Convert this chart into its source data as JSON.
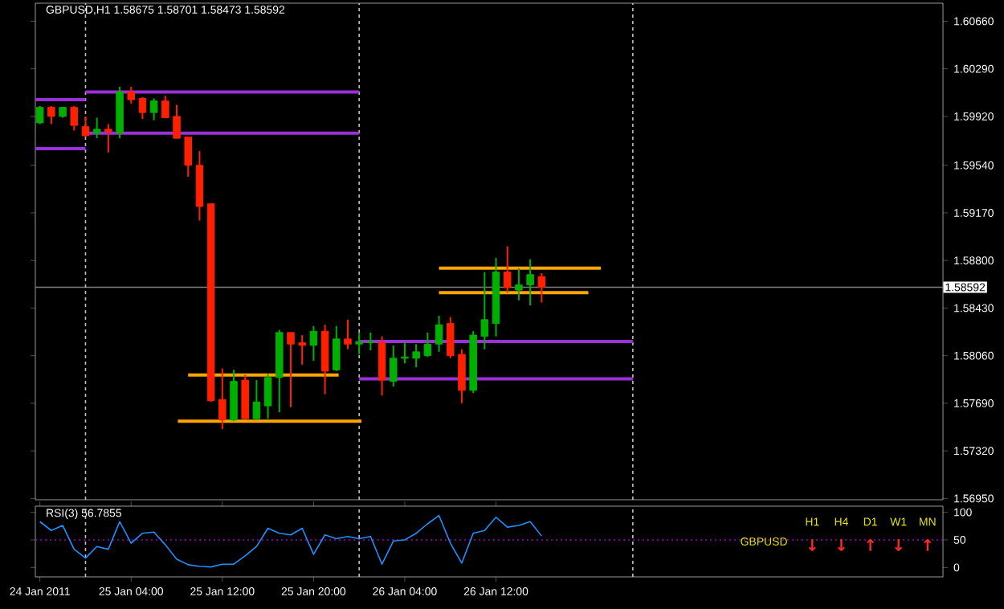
{
  "chart_data": [
    {
      "type": "candlestick",
      "title": "GBPUSD,H1  1.58675 1.58701 1.58473 1.58592",
      "x": [
        "2011-01-24T20:00",
        "2011-01-24T21:00",
        "2011-01-24T22:00",
        "2011-01-24T23:00",
        "2011-01-25T00:00",
        "2011-01-25T01:00",
        "2011-01-25T02:00",
        "2011-01-25T03:00",
        "2011-01-25T04:00",
        "2011-01-25T05:00",
        "2011-01-25T06:00",
        "2011-01-25T07:00",
        "2011-01-25T08:00",
        "2011-01-25T09:00",
        "2011-01-25T10:00",
        "2011-01-25T11:00",
        "2011-01-25T12:00",
        "2011-01-25T13:00",
        "2011-01-25T14:00",
        "2011-01-25T15:00",
        "2011-01-25T16:00",
        "2011-01-25T17:00",
        "2011-01-25T18:00",
        "2011-01-25T19:00",
        "2011-01-25T20:00",
        "2011-01-25T21:00",
        "2011-01-25T22:00",
        "2011-01-25T23:00",
        "2011-01-26T00:00",
        "2011-01-26T01:00",
        "2011-01-26T02:00",
        "2011-01-26T03:00",
        "2011-01-26T04:00",
        "2011-01-26T05:00",
        "2011-01-26T06:00",
        "2011-01-26T07:00",
        "2011-01-26T08:00",
        "2011-01-26T09:00",
        "2011-01-26T10:00",
        "2011-01-26T11:00",
        "2011-01-26T12:00",
        "2011-01-26T13:00",
        "2011-01-26T14:00",
        "2011-01-26T15:00",
        "2011-01-26T16:00"
      ],
      "ohlc": [
        [
          1.5987,
          1.6,
          1.5986,
          1.5999
        ],
        [
          1.5999,
          1.6,
          1.5986,
          1.5992
        ],
        [
          1.5992,
          1.5999,
          1.5991,
          1.5999
        ],
        [
          1.5999,
          1.6,
          1.5981,
          1.5985
        ],
        [
          1.5984,
          1.5992,
          1.5976,
          1.5977
        ],
        [
          1.5979,
          1.5991,
          1.5975,
          1.5982
        ],
        [
          1.5982,
          1.5986,
          1.5964,
          1.598
        ],
        [
          1.5979,
          1.6015,
          1.5975,
          1.6011
        ],
        [
          1.6011,
          1.6015,
          1.6002,
          1.6005
        ],
        [
          1.6006,
          1.6007,
          1.599,
          1.5995
        ],
        [
          1.5995,
          1.6006,
          1.5989,
          1.6004
        ],
        [
          1.6004,
          1.6008,
          1.5991,
          1.5991
        ],
        [
          1.5992,
          1.6001,
          1.5975,
          1.5975
        ],
        [
          1.5976,
          1.5976,
          1.5945,
          1.5954
        ],
        [
          1.5954,
          1.5965,
          1.5911,
          1.5922
        ],
        [
          1.5924,
          1.5924,
          1.577,
          1.5771
        ],
        [
          1.5772,
          1.5796,
          1.5749,
          1.5756
        ],
        [
          1.5756,
          1.5795,
          1.5755,
          1.5786
        ],
        [
          1.5787,
          1.5791,
          1.5757,
          1.5757
        ],
        [
          1.5757,
          1.5787,
          1.5756,
          1.577
        ],
        [
          1.5767,
          1.5792,
          1.5757,
          1.5789
        ],
        [
          1.5789,
          1.5826,
          1.5762,
          1.5824
        ],
        [
          1.5824,
          1.5824,
          1.5766,
          1.5815
        ],
        [
          1.5816,
          1.5822,
          1.5799,
          1.5814
        ],
        [
          1.5814,
          1.5829,
          1.5802,
          1.5825
        ],
        [
          1.5825,
          1.583,
          1.5776,
          1.5794
        ],
        [
          1.5795,
          1.5829,
          1.5794,
          1.5819
        ],
        [
          1.5819,
          1.5834,
          1.5811,
          1.5815
        ],
        [
          1.5815,
          1.5824,
          1.5807,
          1.5817
        ],
        [
          1.5816,
          1.5824,
          1.581,
          1.5817
        ],
        [
          1.5816,
          1.5821,
          1.5775,
          1.5787
        ],
        [
          1.5786,
          1.5814,
          1.5782,
          1.5804
        ],
        [
          1.5804,
          1.5817,
          1.58,
          1.5805
        ],
        [
          1.5804,
          1.5815,
          1.5797,
          1.5809
        ],
        [
          1.5806,
          1.5824,
          1.5805,
          1.5815
        ],
        [
          1.5815,
          1.5837,
          1.5809,
          1.583
        ],
        [
          1.5831,
          1.5836,
          1.5804,
          1.5806
        ],
        [
          1.5807,
          1.5811,
          1.5769,
          1.5779
        ],
        [
          1.5779,
          1.5825,
          1.5777,
          1.5822
        ],
        [
          1.5821,
          1.5871,
          1.5811,
          1.5834
        ],
        [
          1.5831,
          1.5882,
          1.5821,
          1.5871
        ],
        [
          1.5871,
          1.5891,
          1.5855,
          1.5859
        ],
        [
          1.5857,
          1.5874,
          1.5849,
          1.5861
        ],
        [
          1.5861,
          1.5881,
          1.5845,
          1.5869
        ],
        [
          1.58675,
          1.58701,
          1.58473,
          1.58592
        ]
      ],
      "series": [
        {
          "type": "line",
          "x": [
            "2011-01-24T19:36",
            "2011-01-25T00:00"
          ],
          "values": [
            1.6005,
            1.6005
          ],
          "color": "#9b30d9"
        },
        {
          "type": "line",
          "x": [
            "2011-01-24T19:36",
            "2011-01-25T00:00"
          ],
          "values": [
            1.5967,
            1.5967
          ],
          "color": "#9b30d9"
        },
        {
          "type": "line",
          "x": [
            "2011-01-25T00:00",
            "2011-01-26T00:00"
          ],
          "values": [
            1.6011,
            1.6011
          ],
          "color": "#9b30d9"
        },
        {
          "type": "line",
          "x": [
            "2011-01-25T00:00",
            "2011-01-26T00:00"
          ],
          "values": [
            1.5979,
            1.5979
          ],
          "color": "#9b30d9"
        },
        {
          "type": "line",
          "x": [
            "2011-01-26T00:00",
            "2011-01-27T00:00"
          ],
          "values": [
            1.5817,
            1.5817
          ],
          "color": "#9b30d9"
        },
        {
          "type": "line",
          "x": [
            "2011-01-26T00:00",
            "2011-01-27T00:00"
          ],
          "values": [
            1.5788,
            1.5788
          ],
          "color": "#9b30d9"
        },
        {
          "type": "line",
          "x": [
            "2011-01-25T09:00",
            "2011-01-25T22:12"
          ],
          "values": [
            1.5791,
            1.5791
          ],
          "color": "#ffa500"
        },
        {
          "type": "line",
          "x": [
            "2011-01-25T08:06",
            "2011-01-26T00:12"
          ],
          "values": [
            1.5755,
            1.5755
          ],
          "color": "#ffa500"
        },
        {
          "type": "line",
          "x": [
            "2011-01-26T07:00",
            "2011-01-26T21:12"
          ],
          "values": [
            1.5874,
            1.5874
          ],
          "color": "#ffa500"
        },
        {
          "type": "line",
          "x": [
            "2011-01-26T07:00",
            "2011-01-26T20:06"
          ],
          "values": [
            1.5855,
            1.5855
          ],
          "color": "#ffa500"
        }
      ],
      "xlim": [
        "2011-01-24T19:36",
        "2011-01-28T03:12"
      ],
      "ylim": [
        1.5694,
        1.608
      ],
      "yticks": [
        {
          "value": 1.5695,
          "label": "1.56950"
        },
        {
          "value": 1.5732,
          "label": "1.57320"
        },
        {
          "value": 1.5769,
          "label": "1.57690"
        },
        {
          "value": 1.5806,
          "label": "1.58060"
        },
        {
          "value": 1.5843,
          "label": "1.58430"
        },
        {
          "value": 1.588,
          "label": "1.58800"
        },
        {
          "value": 1.5917,
          "label": "1.59170"
        },
        {
          "value": 1.5954,
          "label": "1.59540"
        },
        {
          "value": 1.5992,
          "label": "1.59920"
        },
        {
          "value": 1.6029,
          "label": "1.60290"
        },
        {
          "value": 1.6066,
          "label": "1.60660"
        }
      ],
      "tick_labels": "y",
      "ref_lines": [
        {
          "axis": "y",
          "value": 1.58592,
          "label": "1.58592",
          "color": "#808080",
          "line_style": "solid"
        },
        {
          "axis": "x",
          "value": "2011-01-25T00:00",
          "color": "#c0c0c0",
          "line_style": "dashed"
        },
        {
          "axis": "x",
          "value": "2011-01-26T00:00",
          "color": "#c0c0c0",
          "line_style": "dashed"
        },
        {
          "axis": "x",
          "value": "2011-01-27T00:00",
          "color": "#c0c0c0",
          "line_style": "dashed"
        }
      ]
    },
    {
      "type": "line",
      "title": "RSI(3) 56.7855",
      "x": [
        "2011-01-24T20:00",
        "2011-01-24T21:00",
        "2011-01-24T22:00",
        "2011-01-24T23:00",
        "2011-01-25T00:00",
        "2011-01-25T01:00",
        "2011-01-25T02:00",
        "2011-01-25T03:00",
        "2011-01-25T04:00",
        "2011-01-25T05:00",
        "2011-01-25T06:00",
        "2011-01-25T07:00",
        "2011-01-25T08:00",
        "2011-01-25T09:00",
        "2011-01-25T10:00",
        "2011-01-25T11:00",
        "2011-01-25T12:00",
        "2011-01-25T13:00",
        "2011-01-25T14:00",
        "2011-01-25T15:00",
        "2011-01-25T16:00",
        "2011-01-25T17:00",
        "2011-01-25T18:00",
        "2011-01-25T19:00",
        "2011-01-25T20:00",
        "2011-01-25T21:00",
        "2011-01-25T22:00",
        "2011-01-25T23:00",
        "2011-01-26T00:00",
        "2011-01-26T01:00",
        "2011-01-26T02:00",
        "2011-01-26T03:00",
        "2011-01-26T04:00",
        "2011-01-26T05:00",
        "2011-01-26T06:00",
        "2011-01-26T07:00",
        "2011-01-26T08:00",
        "2011-01-26T09:00",
        "2011-01-26T10:00",
        "2011-01-26T11:00",
        "2011-01-26T12:00",
        "2011-01-26T13:00",
        "2011-01-26T14:00",
        "2011-01-26T15:00",
        "2011-01-26T16:00"
      ],
      "series": [
        {
          "color": "#1e90ff",
          "values": [
            83,
            67,
            76,
            33,
            17,
            38,
            33,
            83,
            44,
            62,
            64,
            41,
            15,
            5,
            2,
            1,
            6,
            6,
            21,
            38,
            71,
            62,
            59,
            71,
            24,
            59,
            52,
            56,
            52,
            56,
            6,
            48,
            50,
            62,
            79,
            94,
            44,
            8,
            62,
            67,
            91,
            73,
            76,
            83,
            57
          ]
        }
      ],
      "xlim": [
        "2011-01-24T19:36",
        "2011-01-28T03:12"
      ],
      "ylim": [
        -17,
        111
      ],
      "yticks": [
        0,
        50,
        100
      ],
      "xticks": [
        {
          "value": "2011-01-24T20:00",
          "label": "24 Jan 2011"
        },
        {
          "value": "2011-01-25T04:00",
          "label": "25 Jan 04:00"
        },
        {
          "value": "2011-01-25T12:00",
          "label": "25 Jan 12:00"
        },
        {
          "value": "2011-01-25T20:00",
          "label": "25 Jan 20:00"
        },
        {
          "value": "2011-01-26T04:00",
          "label": "26 Jan 04:00"
        },
        {
          "value": "2011-01-26T12:00",
          "label": "26 Jan 12:00"
        }
      ],
      "ref_lines": [
        {
          "axis": "y",
          "value": 50,
          "color": "#a000c0",
          "line_style": "dotted"
        },
        {
          "axis": "x",
          "value": "2011-01-25T00:00",
          "color": "#c0c0c0",
          "line_style": "dashed"
        },
        {
          "axis": "x",
          "value": "2011-01-26T00:00",
          "color": "#c0c0c0",
          "line_style": "dashed"
        },
        {
          "axis": "x",
          "value": "2011-01-27T00:00",
          "color": "#c0c0c0",
          "line_style": "dashed"
        }
      ],
      "annotations": [
        "H1",
        "H4",
        "D1",
        "W1",
        "MN",
        "GBPUSD",
        "↓",
        "↓",
        "↑",
        "↓",
        "↑"
      ]
    }
  ]
}
